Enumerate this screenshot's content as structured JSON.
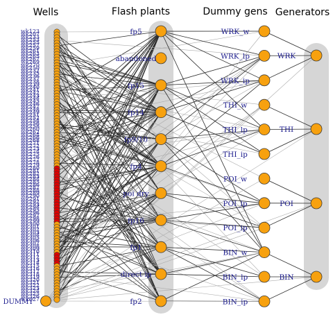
{
  "columns": {
    "wells": "Wells",
    "flash": "Flash plants",
    "dummy": "Dummy gens",
    "gens": "Generators"
  },
  "wells": {
    "dummy_label": "DUMMY",
    "labels": [
      "wk123",
      "wk207",
      "wk233",
      "wk253",
      "wk255",
      "wk257",
      "wk259",
      "wk261",
      "wk263",
      "wk265",
      "wk267",
      "wk269",
      "wk270",
      "wk250",
      "wk232",
      "wk235",
      "wk236",
      "wk237",
      "wk238",
      "wk239",
      "wk240",
      "wk241",
      "wk242",
      "wk243",
      "wk244",
      "wk245",
      "wk246",
      "wk247",
      "wk248",
      "wk249",
      "wk251",
      "wk252",
      "wk254",
      "wk256",
      "wk258",
      "wk260",
      "wk262",
      "wk264",
      "wk266",
      "wk268",
      "wk271",
      "wk272",
      "wk273",
      "wk274",
      "wk275",
      "wk276",
      "wk277",
      "wk278",
      "wk279",
      "wk280",
      "wk281",
      "wk282",
      "wk283",
      "wk284",
      "wk285",
      "wk286",
      "wk287",
      "wk288",
      "wk289",
      "wk290",
      "wk291",
      "wk292",
      "wk293",
      "wk294",
      "wk295",
      "wk296",
      "wk297",
      "wk298",
      "wk299",
      "wk300",
      "wk301",
      "wk302",
      "wk303",
      "wk304",
      "wk305",
      "wk306",
      "wk307",
      "wk308",
      "wk309",
      "wk310",
      "wk311",
      "wk312",
      "wk313",
      "wk314",
      "wk315",
      "wk316",
      "wk317",
      "wk318",
      "wk319",
      "wk320",
      "wk321",
      "wk322",
      "wk323",
      "wk324",
      "wk325",
      "wk326",
      "wk327"
    ]
  },
  "flash_plants": [
    "fp5",
    "abandoned",
    "fp15",
    "fp14",
    "fp9/10",
    "fp4",
    "poi dry",
    "fp16",
    "fp1",
    "direct ip",
    "fp2"
  ],
  "dummy_gens": [
    "WRK_w",
    "WRK_lp",
    "WRK_ip",
    "THI_w",
    "THI_lp",
    "THI_ip",
    "POI_w",
    "POI_lp",
    "POI_ip",
    "BIN_w",
    "BIN_lp",
    "BIN_ip"
  ],
  "generators": [
    "WRK",
    "THI",
    "POI",
    "BIN"
  ],
  "colors": {
    "node_fill": "#f7a10f",
    "node_stroke": "#3a3a3a",
    "red_node": "#e00000",
    "column_bg": "#d6d6d6",
    "edge_dark": "#2b2b2b",
    "edge_light": "#aaaaaa",
    "label": "#1a1a8c"
  }
}
